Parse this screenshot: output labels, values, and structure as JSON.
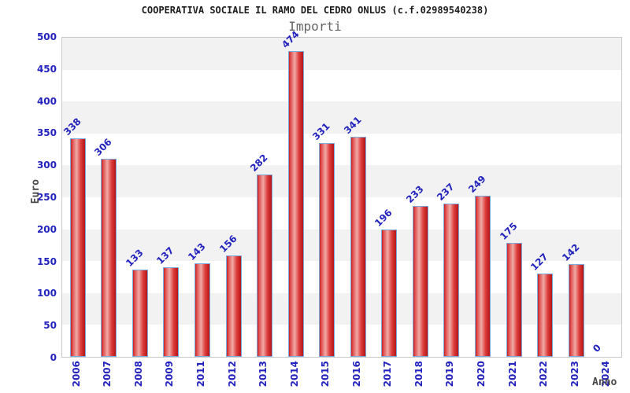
{
  "header": {
    "title": "COOPERATIVA SOCIALE IL RAMO DEL CEDRO ONLUS (c.f.02989540238)",
    "subtitle": "Importi"
  },
  "axes": {
    "y_label": "Euro",
    "x_label": "Anno"
  },
  "chart_data": {
    "type": "bar",
    "title": "COOPERATIVA SOCIALE IL RAMO DEL CEDRO ONLUS (c.f.02989540238)",
    "subtitle": "Importi",
    "xlabel": "Anno",
    "ylabel": "Euro",
    "categories": [
      "2006",
      "2007",
      "2008",
      "2009",
      "2011",
      "2012",
      "2013",
      "2014",
      "2015",
      "2016",
      "2017",
      "2018",
      "2019",
      "2020",
      "2021",
      "2022",
      "2023",
      "2024"
    ],
    "values": [
      338,
      306,
      133,
      137,
      143,
      156,
      282,
      474,
      331,
      341,
      196,
      233,
      237,
      249,
      175,
      127,
      142,
      0
    ],
    "ylim": [
      0,
      500
    ],
    "ytick_step": 50,
    "grid": "alternating horizontal bands every 50, gray band at top",
    "legend": "none",
    "bar_value_labels_rotated_45": true,
    "x_tick_labels_rotated_90": true,
    "colors": {
      "label_blue": "#2323bd",
      "bar_border": "#7aabdf",
      "bar_gradient": [
        "#cc2020",
        "#e05050",
        "#f0aaa6",
        "#dd3c3c",
        "#b51515"
      ],
      "band_gray": "#f2f2f2",
      "band_white": "#ffffff",
      "plot_border": "#c9c9c9",
      "title_color": "#1c1c1c",
      "subtitle_color": "#646464",
      "axis_label_color": "#4a4a4a"
    }
  }
}
